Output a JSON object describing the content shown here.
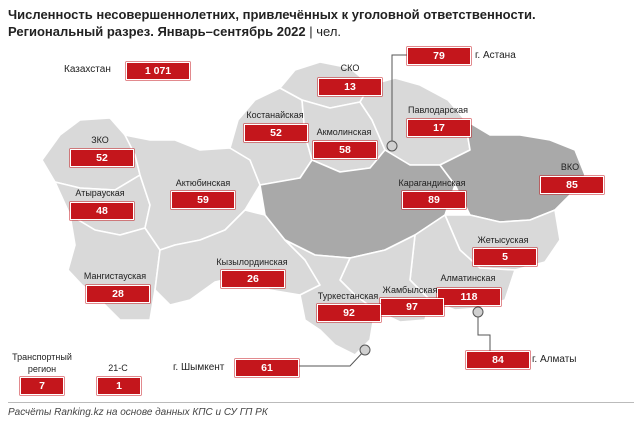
{
  "title": "Численность несовершеннолетних, привлечённых к уголовной ответственности. Региональный разрез. Январь–сентябрь 2022",
  "unit": " | чел.",
  "source": "Расчёты Ranking.kz на основе данных КПС и СУ ГП РК",
  "colors": {
    "accent": "#c4161c",
    "region": "#d9d9d9",
    "highlight": "#a9a9a9",
    "border": "#ffffff"
  },
  "total": {
    "label": "Казахстан",
    "value": "1 071"
  },
  "regions": [
    {
      "id": "sko",
      "label": "СКО",
      "value": "13"
    },
    {
      "id": "astana",
      "label": "г. Астана",
      "value": "79"
    },
    {
      "id": "pavlodar",
      "label": "Павлодарская",
      "value": "17"
    },
    {
      "id": "kostanay",
      "label": "Костанайская",
      "value": "52"
    },
    {
      "id": "akmola",
      "label": "Акмолинская",
      "value": "58"
    },
    {
      "id": "zko",
      "label": "ЗКО",
      "value": "52"
    },
    {
      "id": "vko",
      "label": "ВКО",
      "value": "85"
    },
    {
      "id": "atyrau",
      "label": "Атырауская",
      "value": "48"
    },
    {
      "id": "aktobe",
      "label": "Актюбинская",
      "value": "59"
    },
    {
      "id": "karaganda",
      "label": "Карагандинская",
      "value": "89"
    },
    {
      "id": "zhetysu",
      "label": "Жетысуская",
      "value": "5"
    },
    {
      "id": "kyzylorda",
      "label": "Кызылординская",
      "value": "26"
    },
    {
      "id": "mangystau",
      "label": "Мангистауская",
      "value": "28"
    },
    {
      "id": "almaty_reg",
      "label": "Алматинская",
      "value": "118"
    },
    {
      "id": "zhambyl",
      "label": "Жамбылская",
      "value": "97"
    },
    {
      "id": "turkestan",
      "label": "Туркестанская",
      "value": "92"
    },
    {
      "id": "almaty",
      "label": "г. Алматы",
      "value": "84"
    },
    {
      "id": "shymkent",
      "label": "г. Шымкент",
      "value": "61"
    },
    {
      "id": "transport",
      "label": "Транспортный регион",
      "value": "7"
    },
    {
      "id": "c21",
      "label": "21-С",
      "value": "1"
    }
  ]
}
